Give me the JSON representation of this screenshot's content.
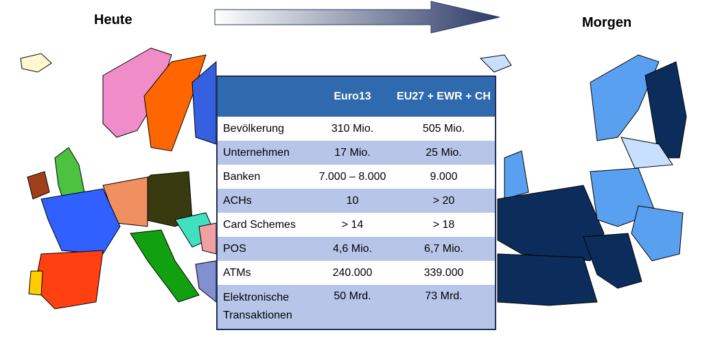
{
  "header": {
    "left": "Heute",
    "right": "Morgen"
  },
  "table": {
    "columns": [
      "Euro13",
      "EU27 + EWR + CH"
    ],
    "rows": [
      [
        "Bevölkerung",
        "310 Mio.",
        "505 Mio."
      ],
      [
        "Unternehmen",
        "17 Mio.",
        "25 Mio."
      ],
      [
        "Banken",
        "7.000 – 8.000",
        "9.000"
      ],
      [
        "ACHs",
        "10",
        "> 20"
      ],
      [
        "Card Schemes",
        "> 14",
        "> 18"
      ],
      [
        "POS",
        "4,6 Mio.",
        "6,7 Mio."
      ],
      [
        "ATMs",
        "240.000",
        "339.000"
      ],
      [
        "Elektronische Transaktionen",
        "50 Mrd.",
        "73 Mrd."
      ]
    ]
  }
}
